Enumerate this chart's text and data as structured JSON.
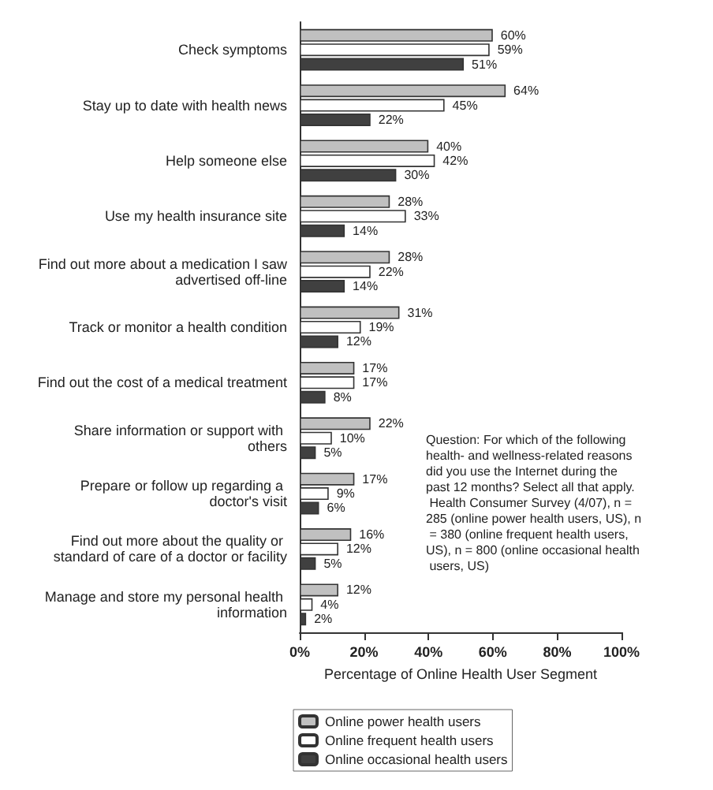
{
  "chart_data": {
    "type": "bar",
    "orientation": "horizontal",
    "categories": [
      "Check symptoms",
      "Stay up to date with health news",
      "Help someone else",
      "Use my health insurance site",
      "Find out more about a medication I saw advertised off-line",
      "Track or monitor a health condition",
      "Find out the cost of a medical treatment",
      "Share information or support with others",
      "Prepare or follow up regarding a doctor's visit",
      "Find out more about the quality or standard of care of a doctor or facility",
      "Manage and store my personal health information"
    ],
    "series": [
      {
        "name": "Online power health users",
        "color": "#c0c0c0",
        "values": [
          60,
          64,
          40,
          28,
          28,
          31,
          17,
          22,
          17,
          16,
          12
        ],
        "value_labels": [
          "60%",
          "64%",
          "40%",
          "28%",
          "28%",
          "31%",
          "17%",
          "22%",
          "17%",
          "16%",
          "12%"
        ]
      },
      {
        "name": "Online frequent health users",
        "color": "#ffffff",
        "values": [
          59,
          45,
          42,
          33,
          22,
          19,
          17,
          10,
          9,
          12,
          4
        ],
        "value_labels": [
          "59%",
          "45%",
          "42%",
          "33%",
          "22%",
          "19%",
          "17%",
          "10%",
          "9%",
          "12%",
          "4%"
        ]
      },
      {
        "name": "Online occasional health users",
        "color": "#404040",
        "values": [
          51,
          22,
          30,
          14,
          14,
          12,
          8,
          5,
          6,
          5,
          2
        ],
        "value_labels": [
          "51%",
          "22%",
          "30%",
          "14%",
          "14%",
          "12%",
          "8%",
          "5%",
          "6%",
          "5%",
          "2%"
        ]
      }
    ],
    "xlabel": "Percentage of Online Health User Segment",
    "xlim": [
      0,
      100
    ],
    "xticks": [
      {
        "value": 0,
        "label": "0%"
      },
      {
        "value": 20,
        "label": "20%"
      },
      {
        "value": 40,
        "label": "40%"
      },
      {
        "value": 60,
        "label": "60%"
      },
      {
        "value": 80,
        "label": "80%"
      },
      {
        "value": 100,
        "label": "100%"
      }
    ],
    "grid": false,
    "legend": "bottom",
    "annotations": [
      "Question: For which of the following health- and wellness-related reasons did you use the Internet during the past 12 months? Select all that apply. Health Consumer Survey (4/07), n = 285 (online power health users, US), n = 380 (online frequent health users, US), n = 800 (online occasional health users, US)"
    ]
  }
}
